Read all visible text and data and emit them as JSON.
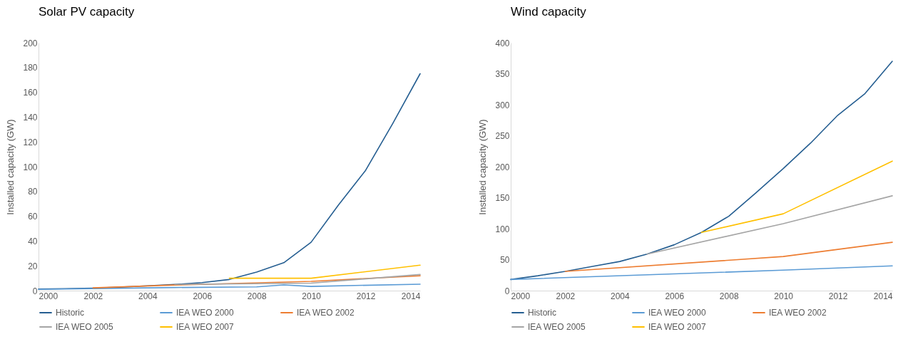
{
  "chart_data": [
    {
      "type": "line",
      "title": "Solar PV capacity",
      "ylabel": "Installed capacity (GW)",
      "xlim": [
        2000,
        2014
      ],
      "xticks": [
        2000,
        2002,
        2004,
        2006,
        2008,
        2010,
        2012,
        2014
      ],
      "ylim": [
        0,
        200
      ],
      "yticks": [
        0,
        20,
        40,
        60,
        80,
        100,
        120,
        140,
        160,
        180,
        200
      ],
      "grid": false,
      "legend": "bottom",
      "marker": "none",
      "line_style": "solid",
      "series": [
        {
          "name": "Historic",
          "color": "#255e91",
          "x": [
            2000,
            2001,
            2002,
            2003,
            2004,
            2005,
            2006,
            2007,
            2008,
            2009,
            2010,
            2011,
            2012,
            2013,
            2014
          ],
          "values": [
            1.3,
            1.6,
            2,
            2.8,
            3.9,
            5,
            6.5,
            9,
            15,
            22.5,
            39,
            69,
            97,
            135,
            175
          ]
        },
        {
          "name": "IEA WEO 2000",
          "color": "#5b9bd5",
          "x": [
            2000,
            2005,
            2008,
            2009,
            2010,
            2014
          ],
          "values": [
            1,
            2.5,
            3,
            4.6,
            3.4,
            5.2
          ]
        },
        {
          "name": "IEA WEO 2002",
          "color": "#ed7d31",
          "x": [
            2002,
            2005,
            2010,
            2014
          ],
          "values": [
            2.2,
            4.5,
            7.5,
            12
          ]
        },
        {
          "name": "IEA WEO 2005",
          "color": "#a5a5a5",
          "x": [
            2005,
            2010,
            2014
          ],
          "values": [
            5,
            6,
            13
          ]
        },
        {
          "name": "IEA WEO 2007",
          "color": "#ffc000",
          "x": [
            2007,
            2010,
            2014
          ],
          "values": [
            10,
            10,
            20.5
          ]
        }
      ]
    },
    {
      "type": "line",
      "title": "Wind capacity",
      "ylabel": "Installed capacity (GW)",
      "xlim": [
        2000,
        2014
      ],
      "xticks": [
        2000,
        2002,
        2004,
        2006,
        2008,
        2010,
        2012,
        2014
      ],
      "ylim": [
        0,
        400
      ],
      "yticks": [
        0,
        50,
        100,
        150,
        200,
        250,
        300,
        350,
        400
      ],
      "grid": false,
      "legend": "bottom",
      "marker": "none",
      "line_style": "solid",
      "series": [
        {
          "name": "Historic",
          "color": "#255e91",
          "x": [
            2000,
            2001,
            2002,
            2003,
            2004,
            2005,
            2006,
            2007,
            2008,
            2009,
            2010,
            2011,
            2012,
            2013,
            2014
          ],
          "values": [
            18,
            24,
            31,
            39,
            47,
            59,
            74,
            94,
            120,
            158,
            197,
            238,
            283,
            318,
            370
          ]
        },
        {
          "name": "IEA WEO 2000",
          "color": "#5b9bd5",
          "x": [
            2000,
            2010,
            2014
          ],
          "values": [
            18,
            33,
            40
          ]
        },
        {
          "name": "IEA WEO 2002",
          "color": "#ed7d31",
          "x": [
            2002,
            2010,
            2014
          ],
          "values": [
            31,
            55,
            78
          ]
        },
        {
          "name": "IEA WEO 2005",
          "color": "#a5a5a5",
          "x": [
            2005,
            2010,
            2014
          ],
          "values": [
            59,
            108,
            153
          ]
        },
        {
          "name": "IEA WEO 2007",
          "color": "#ffc000",
          "x": [
            2007,
            2010,
            2014
          ],
          "values": [
            94,
            124,
            209
          ]
        }
      ]
    }
  ]
}
